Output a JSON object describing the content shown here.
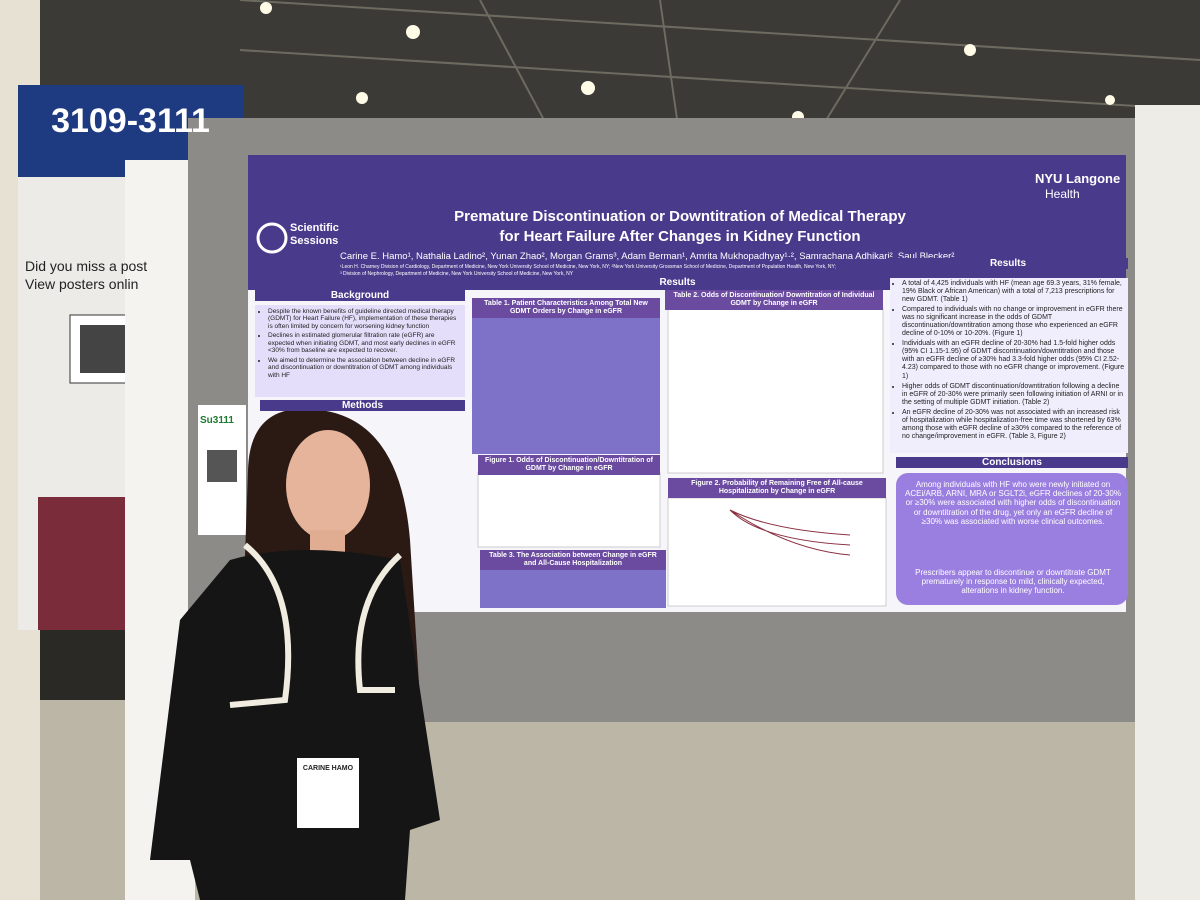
{
  "sign": {
    "booth": "3109-3111",
    "line1": "Did you miss a post",
    "line2": "View posters onlin"
  },
  "badge": {
    "code": "Su3111"
  },
  "name_tag": "CARINE HAMO",
  "poster": {
    "brand": [
      "Scientific",
      "Sessions"
    ],
    "logo": [
      "NYU Langone",
      "Health"
    ],
    "title": [
      "Premature Discontinuation or Downtitration of Medical Therapy",
      "for Heart Failure After Changes in Kidney Function"
    ],
    "authors": "Carine E. Hamo¹, Nathalia Ladino², Yunan Zhao², Morgan Grams³, Adam Berman¹, Amrita Mukhopadhyay¹·², Samrachana Adhikari², Saul Blecker²",
    "affiliations": [
      "¹Leon H. Charney Division of Cardiology, Department of Medicine, New York University School of Medicine, New York, NY; ²New York University Grossman School of Medicine, Department of Population Health, New York, NY;",
      "³ Division of Nephrology, Department of Medicine, New York University School of Medicine, New York, NY"
    ],
    "background": {
      "heading": "Background",
      "bullets": [
        "Despite the known benefits of guideline directed medical therapy (GDMT) for Heart Failure (HF), implementation of these therapies is often limited by concern for worsening kidney function",
        "Declines in estimated glomerular filtration rate (eGFR) are expected when initiating GDMT, and most early declines in eGFR <30% from baseline are expected to recover.",
        "We aimed to determine the association between decline in eGFR and discontinuation or downtitration of GDMT among individuals with HF"
      ]
    },
    "methods": {
      "heading": "Methods"
    },
    "results_heading": "Results",
    "table1": "Table 1. Patient Characteristics Among Total New GDMT Orders by Change in eGFR",
    "table2": "Table 2. Odds of Discontinuation/ Downtitration of Individual GDMT by Change in eGFR",
    "figure1": "Figure 1. Odds of Discontinuation/Downtitration of GDMT by Change in eGFR",
    "figure2": "Figure 2. Probability of Remaining Free of All-cause Hospitalization by Change in eGFR",
    "table3": "Table 3. The Association between Change in eGFR and All-Cause Hospitalization",
    "results": {
      "heading": "Results",
      "bullets": [
        "A total of 4,425 individuals with HF (mean age 69.3 years, 31% female, 19% Black or African American) with a total of 7,213 prescriptions for new GDMT. (Table 1)",
        "Compared to individuals with no change or improvement in eGFR there was no significant increase in the odds of GDMT discontinuation/downtitration among those who experienced an eGFR decline of 0-10% or 10-20%. (Figure 1)",
        "Individuals with an eGFR decline of 20-30% had 1.5-fold higher odds (95% CI 1.15-1.95) of GDMT discontinuation/downtitration and those with an eGFR decline of ≥30% had 3.3-fold higher odds (95% CI 2.52-4.23) compared to those with no eGFR change or improvement. (Figure 1)",
        "Higher odds of GDMT discontinuation/downtitration following a decline in eGFR of 20-30% were primarily seen following initiation of ARNI or in the setting of multiple GDMT initiation. (Table 2)",
        "An eGFR decline of 20-30% was not associated with an increased risk of hospitalization while hospitalization-free time was shortened by 63% among those with eGFR decline of ≥30% compared to the reference of no change/improvement in eGFR. (Table 3, Figure 2)"
      ]
    },
    "conclusions": {
      "heading": "Conclusions",
      "paragraphs": [
        "Among individuals with HF who were newly initiated on ACEi/ARB, ARNI, MRA or SGLT2i, eGFR declines of 20-30% or ≥30% were associated with higher odds of discontinuation or downtitration of the drug, yet only an eGFR decline of ≥30% was associated with worse clinical outcomes.",
        "Prescribers appear to discontinue or downtitrate GDMT prematurely in response to mild, clinically expected, alterations in kidney function."
      ]
    }
  }
}
